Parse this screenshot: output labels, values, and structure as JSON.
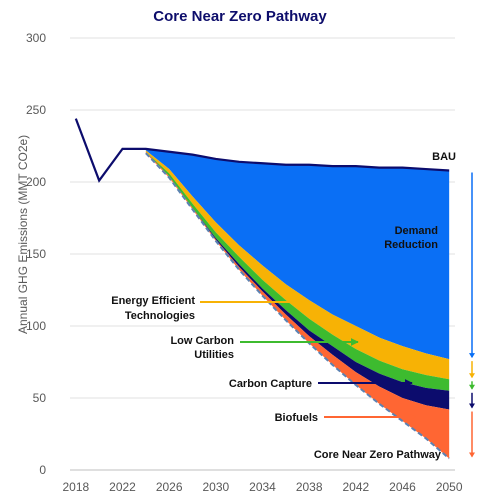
{
  "colors": {
    "demand": "#0a6ff5",
    "energy_efficient": "#f7b205",
    "low_carbon": "#3dbb2f",
    "carbon_capture": "#0c0c6d",
    "biofuels": "#ff6633",
    "bau_line": "#0c0c6d",
    "pathway_line": "#5b82b3",
    "grid": "#e0e0e0"
  },
  "chart_data": {
    "type": "area",
    "title": "Core Near Zero Pathway",
    "ylabel": "Annual GHG Emissions (MMT CO2e)",
    "xlim": [
      2017.5,
      2050.5
    ],
    "ylim": [
      0,
      300
    ],
    "x_ticks": [
      "2018",
      "2022",
      "2026",
      "2030",
      "2034",
      "2038",
      "2042",
      "2046",
      "2050"
    ],
    "y_ticks": [
      "0",
      "50",
      "100",
      "150",
      "200",
      "250",
      "300"
    ],
    "grid": "horizontal",
    "x": [
      2018,
      2020,
      2022,
      2024,
      2026,
      2028,
      2030,
      2032,
      2034,
      2036,
      2038,
      2040,
      2042,
      2044,
      2046,
      2048,
      2050
    ],
    "series": [
      {
        "name": "BAU",
        "values": [
          244,
          201,
          223,
          223,
          221,
          219,
          216,
          214,
          213,
          212,
          212,
          211,
          211,
          210,
          210,
          209,
          208
        ]
      },
      {
        "name": "Demand Reduction",
        "values": [
          244,
          201,
          223,
          222,
          209,
          190,
          172,
          156,
          142,
          129,
          118,
          108,
          100,
          92,
          86,
          81,
          77
        ]
      },
      {
        "name": "Energy Efficient Technologies",
        "values": [
          244,
          201,
          223,
          221,
          206,
          185,
          165,
          148,
          132,
          118,
          105,
          94,
          84,
          76,
          70,
          66,
          63
        ]
      },
      {
        "name": "Low Carbon Utilities",
        "values": [
          244,
          201,
          222,
          221,
          204,
          182,
          161,
          143,
          126,
          111,
          97,
          86,
          75,
          67,
          61,
          57,
          55
        ]
      },
      {
        "name": "Carbon Capture",
        "values": [
          244,
          201,
          222,
          221,
          204,
          182,
          160,
          141,
          124,
          108,
          93,
          80,
          68,
          58,
          50,
          45,
          42
        ]
      },
      {
        "name": "Core Near Zero Pathway",
        "values": [
          244,
          201,
          222,
          220,
          203,
          181,
          159,
          139,
          121,
          104,
          88,
          73,
          59,
          46,
          34,
          22,
          8
        ]
      }
    ],
    "labels": {
      "bau": "BAU",
      "demand": [
        "Demand",
        "Reduction"
      ],
      "energy": [
        "Energy Efficient",
        "Technologies"
      ],
      "low_carbon": [
        "Low Carbon",
        "Utilities"
      ],
      "carbon_capture": "Carbon Capture",
      "biofuels": "Biofuels",
      "pathway": "Core Near Zero Pathway"
    }
  }
}
